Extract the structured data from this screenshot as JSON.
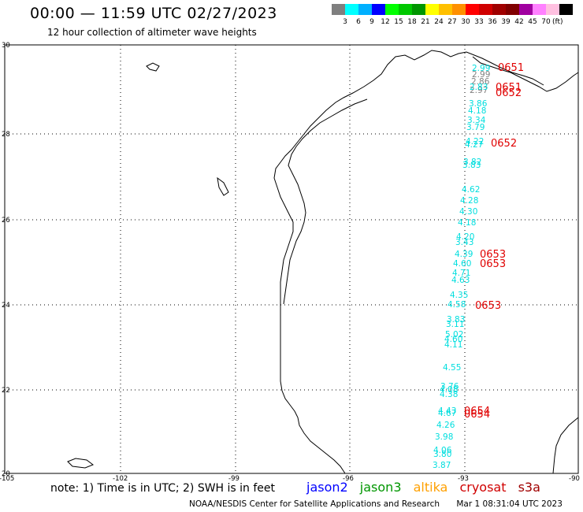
{
  "header": {
    "title": "00:00 — 11:59 UTC 02/27/2023",
    "subtitle": "12 hour collection of altimeter wave heights"
  },
  "colorbar": {
    "colors": [
      "#7f7f7f",
      "#00ffff",
      "#00b0ff",
      "#0000ff",
      "#00ff00",
      "#00c800",
      "#009600",
      "#ffff00",
      "#ffc000",
      "#ff9000",
      "#ff0000",
      "#d00000",
      "#a00000",
      "#800000",
      "#a000a0",
      "#ff80ff",
      "#ffc0e0",
      "#000000"
    ],
    "labels": [
      "3",
      "6",
      "9",
      "12",
      "15",
      "18",
      "21",
      "24",
      "27",
      "30",
      "33",
      "36",
      "39",
      "42",
      "45",
      "70"
    ],
    "unit": "(ft)"
  },
  "axes": {
    "lat_labels": [
      "30",
      "28",
      "26",
      "24",
      "22",
      "20"
    ],
    "lon_labels": [
      "-105",
      "-102",
      "-99",
      "-96",
      "-93",
      "-90"
    ]
  },
  "observations": [
    {
      "text": "2.99",
      "color": "#808080"
    },
    {
      "text": "2.86",
      "color": "#808080"
    },
    {
      "text": "2.97",
      "color": "#808080"
    },
    {
      "text": "2.99",
      "color": "#00dede"
    },
    {
      "text": "2.83",
      "color": "#00dede"
    },
    {
      "text": "3.86",
      "color": "#00dede"
    },
    {
      "text": "4.18",
      "color": "#00dede"
    },
    {
      "text": "3.34",
      "color": "#00dede"
    },
    {
      "text": "3.79",
      "color": "#00dede"
    },
    {
      "text": "4.22",
      "color": "#00dede"
    },
    {
      "text": "4.27",
      "color": "#00dede"
    },
    {
      "text": "3.82",
      "color": "#00dede"
    },
    {
      "text": "3.83",
      "color": "#00dede"
    },
    {
      "text": "4.62",
      "color": "#00dede"
    },
    {
      "text": "4.28",
      "color": "#00dede"
    },
    {
      "text": "4.30",
      "color": "#00dede"
    },
    {
      "text": "4.18",
      "color": "#00dede"
    },
    {
      "text": "4.20",
      "color": "#00dede"
    },
    {
      "text": "3.43",
      "color": "#00dede"
    },
    {
      "text": "4.39",
      "color": "#00dede"
    },
    {
      "text": "4.60",
      "color": "#00dede"
    },
    {
      "text": "4.71",
      "color": "#00dede"
    },
    {
      "text": "4.63",
      "color": "#00dede"
    },
    {
      "text": "4.35",
      "color": "#00dede"
    },
    {
      "text": "4.58",
      "color": "#00dede"
    },
    {
      "text": "3.83",
      "color": "#00dede"
    },
    {
      "text": "3.11",
      "color": "#00dede"
    },
    {
      "text": "5.02",
      "color": "#00dede"
    },
    {
      "text": "4.60",
      "color": "#00dede"
    },
    {
      "text": "4.11",
      "color": "#00dede"
    },
    {
      "text": "4.55",
      "color": "#00dede"
    },
    {
      "text": "3.76",
      "color": "#00dede"
    },
    {
      "text": "4.08",
      "color": "#00dede"
    },
    {
      "text": "4.38",
      "color": "#00dede"
    },
    {
      "text": "4.43",
      "color": "#00dede"
    },
    {
      "text": "4.67",
      "color": "#00dede"
    },
    {
      "text": "4.26",
      "color": "#00dede"
    },
    {
      "text": "3.98",
      "color": "#00dede"
    },
    {
      "text": "4.06",
      "color": "#00dede"
    },
    {
      "text": "3.80",
      "color": "#00dede"
    },
    {
      "text": "3.87",
      "color": "#00dede"
    }
  ],
  "time_labels": [
    "0651",
    "0651",
    "0652",
    "0652",
    "0653",
    "0653",
    "0653",
    "0654",
    "0654"
  ],
  "note": "note:  1) Time is in UTC;  2) SWH is in feet",
  "satellites": [
    {
      "name": "jason2",
      "color": "#0000ff"
    },
    {
      "name": "jason3",
      "color": "#009600"
    },
    {
      "name": "altika",
      "color": "#ffa000"
    },
    {
      "name": "cryosat",
      "color": "#d00000"
    },
    {
      "name": "s3a",
      "color": "#a00000"
    }
  ],
  "footer": {
    "credit": "NOAA/NESDIS Center for Satellite Applications and Research",
    "timestamp": "Mar  1 08:31:04 UTC 2023"
  }
}
